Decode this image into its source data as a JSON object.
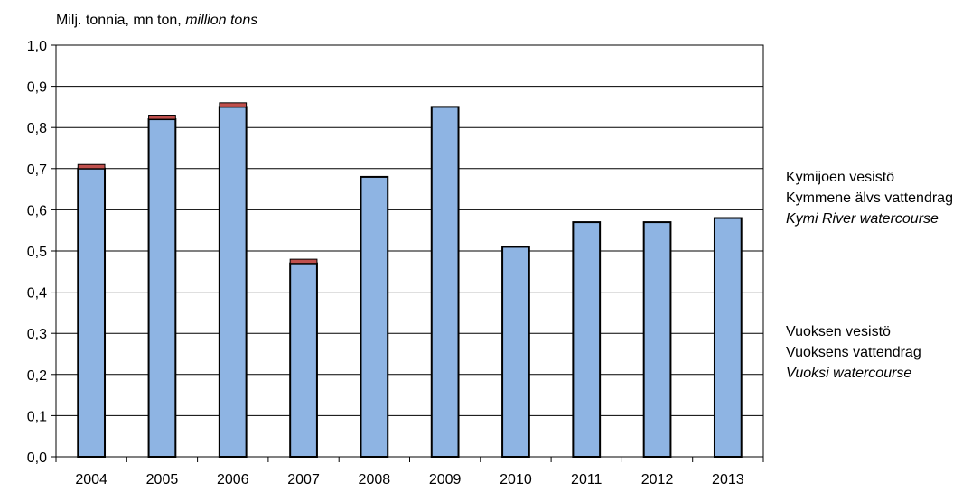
{
  "chart_data": {
    "type": "bar",
    "stacked": true,
    "y_axis_label": {
      "part1": "Milj. tonnia,  mn ton,",
      "part2": "million  tons"
    },
    "categories": [
      "2004",
      "2005",
      "2006",
      "2007",
      "2008",
      "2009",
      "2010",
      "2011",
      "2012",
      "2013"
    ],
    "series": [
      {
        "name_fi": "Kymijoen vesistö",
        "name_sv": "Kymmene älvs vattendrag",
        "name_en": "Kymi River watercourse",
        "color": "#8eb4e3",
        "values": [
          0.7,
          0.82,
          0.85,
          0.47,
          0.68,
          0.85,
          0.51,
          0.57,
          0.57,
          0.58
        ]
      },
      {
        "name_fi": "Vuoksen vesistö",
        "name_sv": "Vuoksens vattendrag",
        "name_en": "Vuoksi watercourse",
        "color": "#c0504d",
        "values": [
          0.01,
          0.01,
          0.01,
          0.01,
          0.0,
          0.0,
          0.0,
          0.0,
          0.0,
          0.0
        ]
      }
    ],
    "ylim": [
      0,
      1.0
    ],
    "yticks": [
      "0,0",
      "0,1",
      "0,2",
      "0,3",
      "0,4",
      "0,5",
      "0,6",
      "0,7",
      "0,8",
      "0,9",
      "1,0"
    ],
    "grid": true,
    "legend_position": "right"
  }
}
